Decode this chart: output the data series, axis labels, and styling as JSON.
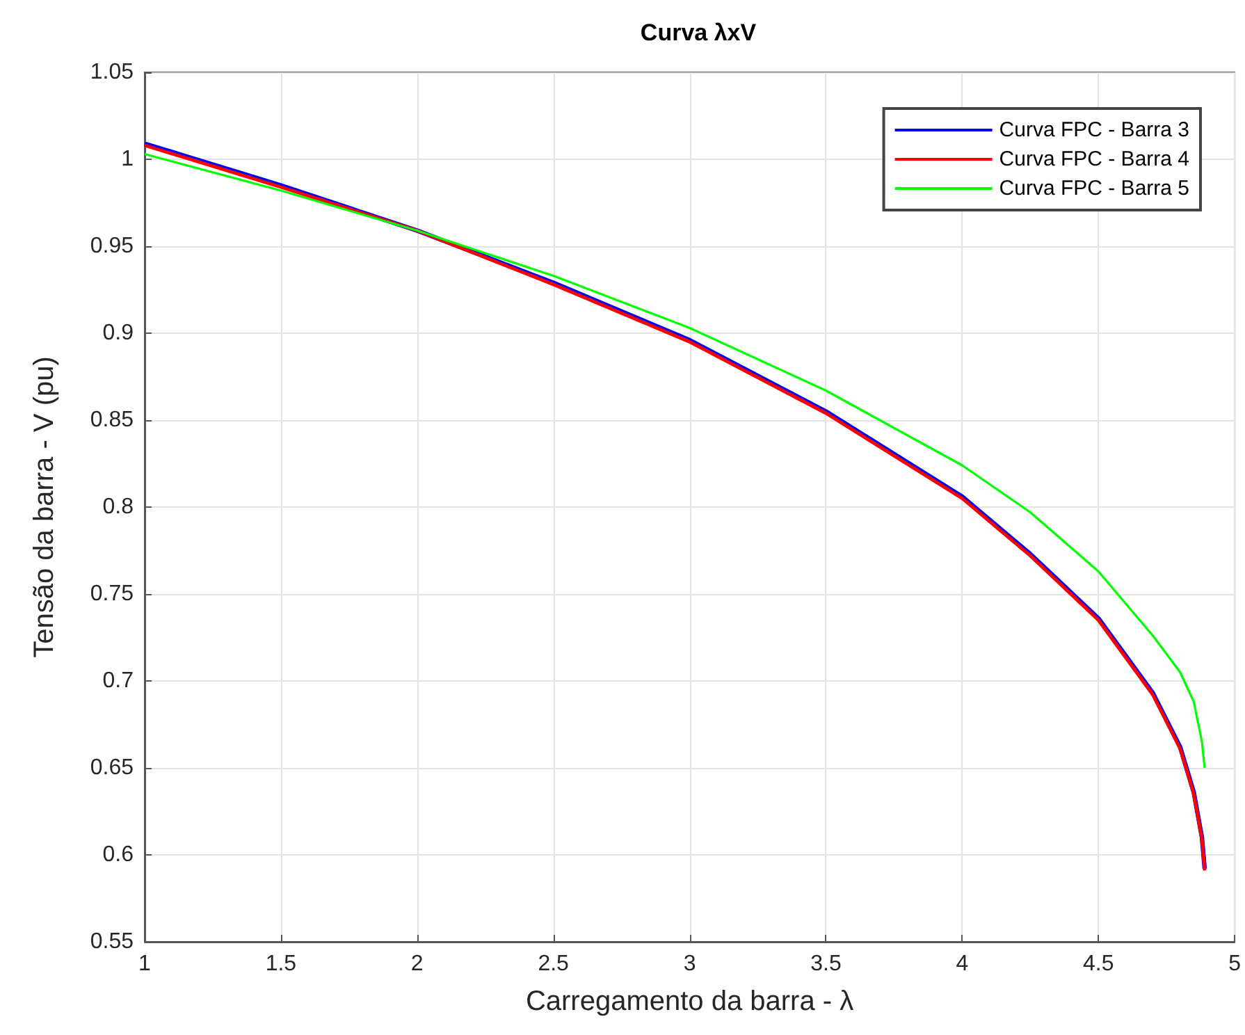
{
  "chart_data": {
    "type": "line",
    "title": "Curva λxV",
    "xlabel": "Carregamento da barra - λ",
    "ylabel": "Tensão da barra - V (pu)",
    "x": [
      1,
      1.5,
      2,
      2.5,
      3,
      3.5,
      4,
      4.25,
      4.5,
      4.7,
      4.8,
      4.85,
      4.88,
      4.89
    ],
    "series": [
      {
        "name": "Curva FPC - Barra 3",
        "color": "#0000ff",
        "values": [
          1.009,
          0.985,
          0.959,
          0.929,
          0.896,
          0.855,
          0.806,
          0.773,
          0.736,
          0.693,
          0.662,
          0.636,
          0.61,
          0.592
        ]
      },
      {
        "name": "Curva FPC - Barra 4",
        "color": "#ff0000",
        "values": [
          1.008,
          0.984,
          0.959,
          0.928,
          0.895,
          0.854,
          0.805,
          0.772,
          0.735,
          0.692,
          0.661,
          0.635,
          0.609,
          0.591
        ]
      },
      {
        "name": "Curva FPC - Barra 5",
        "color": "#00ff00",
        "values": [
          1.003,
          0.982,
          0.959,
          0.933,
          0.903,
          0.867,
          0.824,
          0.797,
          0.763,
          0.726,
          0.705,
          0.688,
          0.665,
          0.65
        ]
      }
    ],
    "xlim": [
      1,
      5
    ],
    "xticks": [
      1,
      1.5,
      2,
      2.5,
      3,
      3.5,
      4,
      4.5,
      5
    ],
    "ylim": [
      0.55,
      1.05
    ],
    "yticks": [
      0.55,
      0.6,
      0.65,
      0.7,
      0.75,
      0.8,
      0.85,
      0.9,
      0.95,
      1,
      1.05
    ],
    "grid": true,
    "legend": "top right",
    "marker": "none",
    "line_style": "solid"
  }
}
